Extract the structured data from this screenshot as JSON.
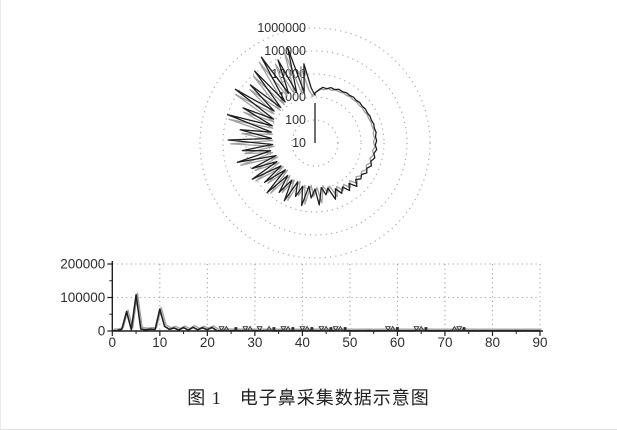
{
  "figure": {
    "caption": {
      "prefix": "图 1",
      "text": "电子鼻采集数据示意图"
    }
  },
  "colors": {
    "ink": "#1f1f1f",
    "echo": "#a0a0a0",
    "grid": "#a2a2a2",
    "label": "#2e2e2e",
    "background": "#ffffff"
  },
  "chart_data": [
    {
      "type": "line",
      "variant": "polar",
      "title": "",
      "legend": "none",
      "grid": "dotted-rings",
      "radial_axis": {
        "scale": "log",
        "ticks": [
          10,
          100,
          1000,
          10000,
          100000,
          1000000
        ],
        "tick_labels": [
          "10",
          "100",
          "1000",
          "10000",
          "100000",
          "1000000"
        ]
      },
      "angle_start_deg": 90,
      "angle_step_deg": 4,
      "direction": "ccw",
      "values": [
        1200,
        2500,
        30000,
        1800,
        200000,
        2200,
        90000,
        2800,
        250000,
        1600,
        120000,
        1400,
        60000,
        1800,
        150000,
        1200,
        30000,
        1000,
        100000,
        900,
        20000,
        800,
        60000,
        700,
        15000,
        900,
        30000,
        600,
        9000,
        700,
        14000,
        600,
        6000,
        550,
        10000,
        700,
        4500,
        800,
        7000,
        700,
        3000,
        900,
        6000,
        800,
        2500,
        1000,
        5000,
        900,
        2000,
        1100,
        4000,
        1500,
        3000,
        1800,
        3600,
        2000,
        4200,
        2400,
        3400,
        2800,
        4000,
        3200,
        4400,
        3600,
        4800,
        4000,
        5000,
        4200,
        4800,
        4400,
        5000,
        4600,
        4800,
        4400,
        4600,
        4200,
        4400,
        4000,
        4200,
        3800,
        4000,
        3600,
        3800,
        3400,
        3600,
        3000,
        3200,
        2600,
        2800,
        2000,
        1500
      ]
    },
    {
      "type": "line",
      "variant": "cartesian",
      "title": "",
      "xlabel": "",
      "ylabel": "",
      "xlim": [
        0,
        90
      ],
      "ylim": [
        0,
        200000
      ],
      "x_start": 0,
      "x_step": 1,
      "x_ticks": [
        0,
        10,
        20,
        30,
        40,
        50,
        60,
        70,
        80,
        90
      ],
      "x_minor_ticks": [
        5,
        15,
        25,
        35,
        45,
        55,
        65,
        75,
        85
      ],
      "y_ticks": [
        0,
        100000,
        200000
      ],
      "y_tick_labels": [
        "0",
        "100000",
        "200000"
      ],
      "y_minor_ticks": [
        50000,
        150000
      ],
      "grid": "dotted",
      "values": [
        800,
        1500,
        5000,
        58000,
        4000,
        108000,
        6000,
        3500,
        5500,
        4500,
        65000,
        14000,
        5000,
        9000,
        3000,
        10000,
        2500,
        11000,
        3500,
        9500,
        4000,
        10500,
        1200,
        600,
        1500,
        500,
        1100,
        600,
        1300,
        800,
        1000,
        500,
        900,
        1200,
        600,
        800,
        1400,
        700,
        500,
        900,
        1100,
        600,
        1200,
        500,
        800,
        1000,
        600,
        900,
        1300,
        500,
        700,
        400,
        600,
        500,
        800,
        400,
        700,
        500,
        900,
        1100,
        600,
        500,
        700,
        400,
        800,
        1000,
        500,
        600,
        400,
        700,
        500,
        600,
        1200,
        900,
        1400,
        600,
        500,
        400,
        600,
        500,
        700,
        400,
        500,
        600,
        400,
        500,
        400,
        600,
        500,
        400,
        500
      ],
      "markers": {
        "triangle_down": [
          23,
          28,
          31,
          36,
          40,
          44,
          47,
          58,
          64,
          73
        ],
        "triangle_up": [
          24,
          29,
          33,
          37,
          41,
          45,
          48,
          59,
          65,
          72
        ],
        "square": [
          26,
          34,
          38,
          42,
          46,
          49,
          60,
          66,
          74
        ]
      }
    }
  ]
}
